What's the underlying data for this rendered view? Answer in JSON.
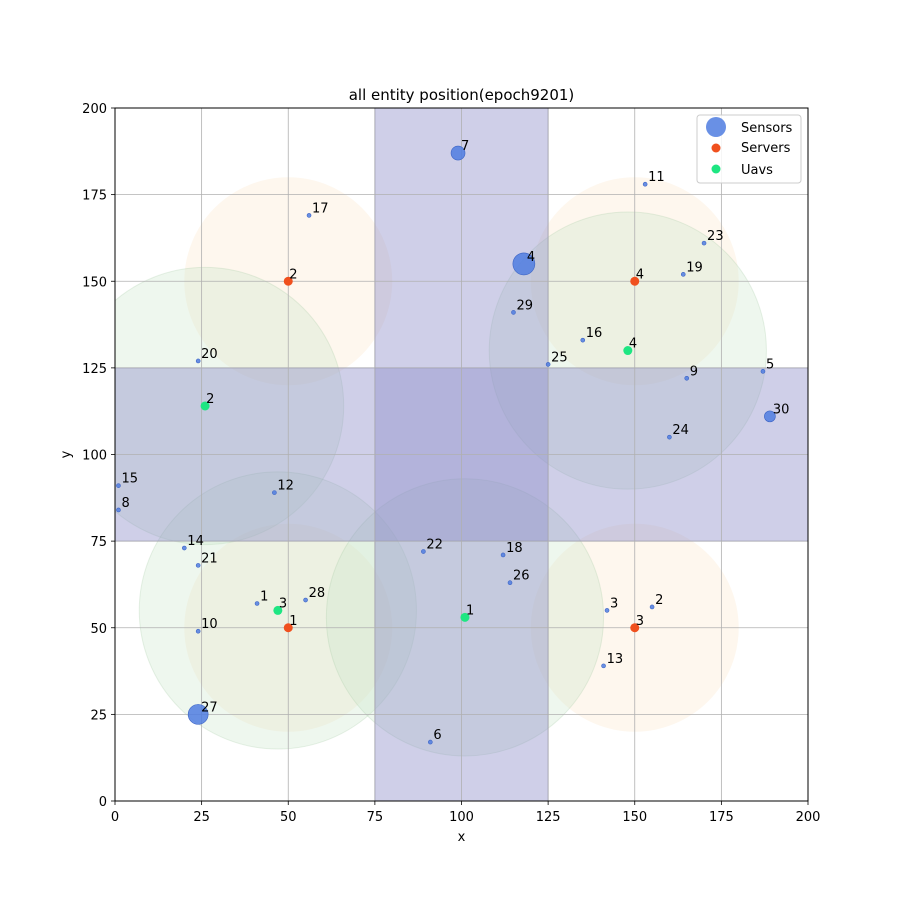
{
  "chart_data": {
    "type": "scatter",
    "title": "all entity position(epoch9201)",
    "xlabel": "x",
    "ylabel": "y",
    "xlim": [
      0,
      200
    ],
    "ylim": [
      0,
      200
    ],
    "xticks": [
      0,
      25,
      50,
      75,
      100,
      125,
      150,
      175,
      200
    ],
    "yticks": [
      0,
      25,
      50,
      75,
      100,
      125,
      150,
      175,
      200
    ],
    "grid": true,
    "legend_position": "top-right",
    "colors": {
      "sensor": "#4f7de0",
      "server": "#f0501e",
      "uav": "#1ee682",
      "band": "#8c8cc8",
      "server_zone": "#fde5c8",
      "uav_zone": "#c8e6c8"
    },
    "legend": [
      "Sensors",
      "Servers",
      "Uavs"
    ],
    "bands": [
      {
        "x": [
          75,
          125
        ],
        "y": [
          0,
          200
        ]
      },
      {
        "x": [
          0,
          200
        ],
        "y": [
          75,
          125
        ]
      }
    ],
    "server_zones": [
      {
        "cx": 50,
        "cy": 150,
        "r": 30
      },
      {
        "cx": 150,
        "cy": 150,
        "r": 30
      },
      {
        "cx": 50,
        "cy": 50,
        "r": 30
      },
      {
        "cx": 150,
        "cy": 50,
        "r": 30
      }
    ],
    "uav_zones": [
      {
        "cx": 26,
        "cy": 114,
        "r": 40
      },
      {
        "cx": 148,
        "cy": 130,
        "r": 40
      },
      {
        "cx": 47,
        "cy": 55,
        "r": 40
      },
      {
        "cx": 101,
        "cy": 53,
        "r": 40
      }
    ],
    "sensors": [
      {
        "label": "1",
        "x": 41,
        "y": 57,
        "size": 4
      },
      {
        "label": "2",
        "x": 155,
        "y": 56,
        "size": 4
      },
      {
        "label": "3",
        "x": 142,
        "y": 55,
        "size": 4
      },
      {
        "label": "4",
        "x": 118,
        "y": 155,
        "size": 22
      },
      {
        "label": "5",
        "x": 187,
        "y": 124,
        "size": 4
      },
      {
        "label": "6",
        "x": 91,
        "y": 17,
        "size": 4
      },
      {
        "label": "7",
        "x": 99,
        "y": 187,
        "size": 14
      },
      {
        "label": "8",
        "x": 1,
        "y": 84,
        "size": 4
      },
      {
        "label": "9",
        "x": 165,
        "y": 122,
        "size": 4
      },
      {
        "label": "10",
        "x": 24,
        "y": 49,
        "size": 4
      },
      {
        "label": "11",
        "x": 153,
        "y": 178,
        "size": 4
      },
      {
        "label": "12",
        "x": 46,
        "y": 89,
        "size": 4
      },
      {
        "label": "13",
        "x": 141,
        "y": 39,
        "size": 4
      },
      {
        "label": "14",
        "x": 20,
        "y": 73,
        "size": 4
      },
      {
        "label": "15",
        "x": 1,
        "y": 91,
        "size": 4
      },
      {
        "label": "16",
        "x": 135,
        "y": 133,
        "size": 4
      },
      {
        "label": "17",
        "x": 56,
        "y": 169,
        "size": 4
      },
      {
        "label": "18",
        "x": 112,
        "y": 71,
        "size": 4
      },
      {
        "label": "19",
        "x": 164,
        "y": 152,
        "size": 4
      },
      {
        "label": "20",
        "x": 24,
        "y": 127,
        "size": 4
      },
      {
        "label": "21",
        "x": 24,
        "y": 68,
        "size": 4
      },
      {
        "label": "22",
        "x": 89,
        "y": 72,
        "size": 4
      },
      {
        "label": "23",
        "x": 170,
        "y": 161,
        "size": 4
      },
      {
        "label": "24",
        "x": 160,
        "y": 105,
        "size": 4
      },
      {
        "label": "25",
        "x": 125,
        "y": 126,
        "size": 4
      },
      {
        "label": "26",
        "x": 114,
        "y": 63,
        "size": 4
      },
      {
        "label": "27",
        "x": 24,
        "y": 25,
        "size": 20
      },
      {
        "label": "28",
        "x": 55,
        "y": 58,
        "size": 4
      },
      {
        "label": "29",
        "x": 115,
        "y": 141,
        "size": 4
      },
      {
        "label": "30",
        "x": 189,
        "y": 111,
        "size": 11
      }
    ],
    "servers": [
      {
        "label": "1",
        "x": 50,
        "y": 50
      },
      {
        "label": "2",
        "x": 50,
        "y": 150
      },
      {
        "label": "3",
        "x": 150,
        "y": 50
      },
      {
        "label": "4",
        "x": 150,
        "y": 150
      }
    ],
    "uavs": [
      {
        "label": "1",
        "x": 101,
        "y": 53
      },
      {
        "label": "2",
        "x": 26,
        "y": 114
      },
      {
        "label": "3",
        "x": 47,
        "y": 55
      },
      {
        "label": "4",
        "x": 148,
        "y": 130
      }
    ]
  }
}
